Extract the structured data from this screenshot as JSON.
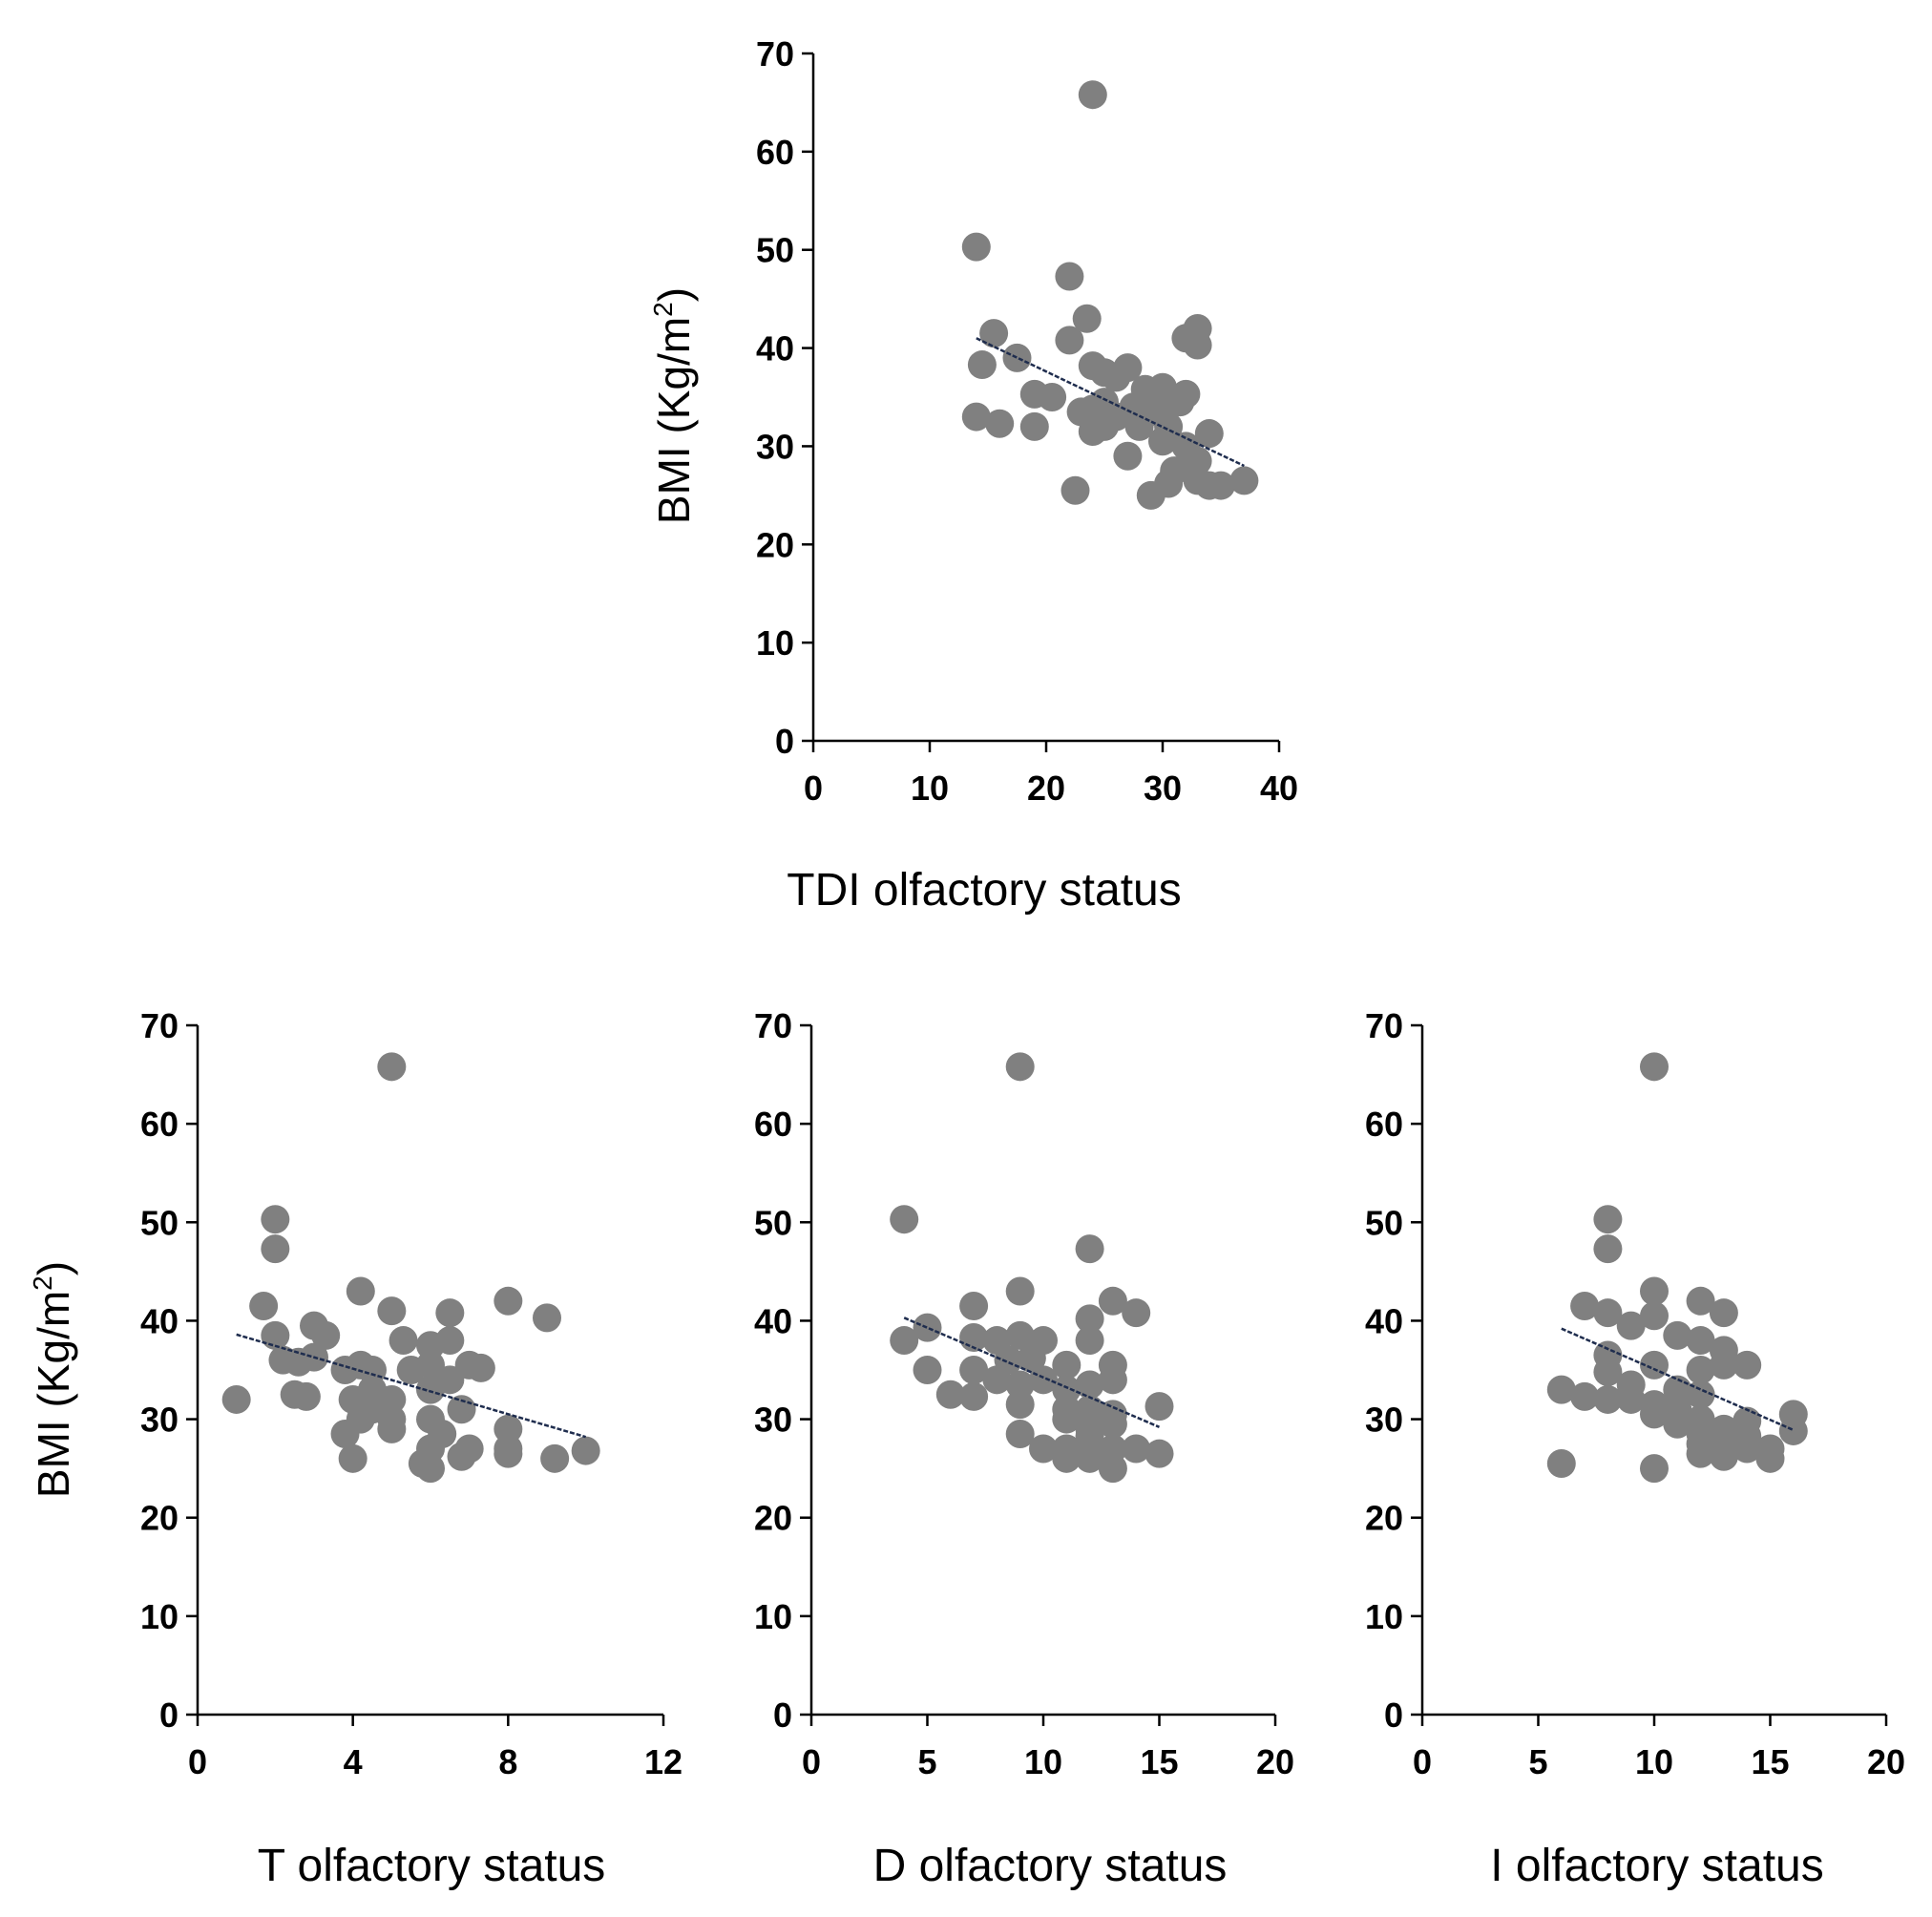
{
  "colors": {
    "point": "#808080",
    "trendline": "#1f2d4e",
    "axis": "#000000"
  },
  "chart_data": [
    {
      "type": "scatter",
      "id": "tdi",
      "xlabel": "TDI olfactory status",
      "ylabel_main": "BMI (Kg/m",
      "ylabel_sup": "2",
      "ylabel_close": ")",
      "xlim": [
        0,
        40
      ],
      "ylim": [
        0,
        70
      ],
      "xticks": [
        "0",
        "10",
        "20",
        "30",
        "40"
      ],
      "yticks": [
        "0",
        "10",
        "20",
        "30",
        "40",
        "50",
        "60",
        "70"
      ],
      "trendline": {
        "x": [
          14,
          37
        ],
        "y": [
          41,
          28
        ]
      },
      "points": [
        [
          24,
          65.8
        ],
        [
          14,
          50.3
        ],
        [
          22,
          47.3
        ],
        [
          23.5,
          43
        ],
        [
          15.5,
          41.5
        ],
        [
          22,
          40.8
        ],
        [
          17.5,
          39
        ],
        [
          14.5,
          38.3
        ],
        [
          24,
          38.2
        ],
        [
          27,
          38
        ],
        [
          25,
          37.5
        ],
        [
          26,
          37
        ],
        [
          28.5,
          35.8
        ],
        [
          19,
          35.3
        ],
        [
          20.5,
          35
        ],
        [
          25,
          34.5
        ],
        [
          27.5,
          34
        ],
        [
          24,
          33.8
        ],
        [
          23,
          33.5
        ],
        [
          29.5,
          33.5
        ],
        [
          14,
          33
        ],
        [
          16,
          32.3
        ],
        [
          19,
          32
        ],
        [
          25,
          32
        ],
        [
          28,
          32
        ],
        [
          24,
          31.5
        ],
        [
          30,
          36
        ],
        [
          32,
          35.3
        ],
        [
          31.5,
          34.5
        ],
        [
          29,
          34
        ],
        [
          33,
          42
        ],
        [
          32,
          41
        ],
        [
          33,
          40.3
        ],
        [
          34,
          31.3
        ],
        [
          30,
          30.5
        ],
        [
          32,
          30
        ],
        [
          27,
          29
        ],
        [
          33,
          28.5
        ],
        [
          31,
          27.5
        ],
        [
          33,
          26.5
        ],
        [
          37,
          26.5
        ],
        [
          35,
          26
        ],
        [
          34,
          26
        ],
        [
          29,
          25
        ],
        [
          22.5,
          25.5
        ],
        [
          30.5,
          26.2
        ],
        [
          26,
          33
        ],
        [
          30.5,
          32
        ]
      ]
    },
    {
      "type": "scatter",
      "id": "t",
      "xlabel": "T olfactory status",
      "ylabel_main": "BMI (Kg/m",
      "ylabel_sup": "2",
      "ylabel_close": ")",
      "xlim": [
        0,
        12
      ],
      "ylim": [
        0,
        70
      ],
      "xticks": [
        "0",
        "4",
        "8",
        "12"
      ],
      "yticks": [
        "0",
        "10",
        "20",
        "30",
        "40",
        "50",
        "60",
        "70"
      ],
      "trendline": {
        "x": [
          1,
          10
        ],
        "y": [
          38.6,
          28.2
        ]
      },
      "points": [
        [
          5,
          65.8
        ],
        [
          2,
          50.3
        ],
        [
          2,
          47.3
        ],
        [
          4.2,
          43
        ],
        [
          5,
          41
        ],
        [
          1.7,
          41.5
        ],
        [
          6.5,
          40.8
        ],
        [
          8,
          42
        ],
        [
          9,
          40.3
        ],
        [
          2,
          38.5
        ],
        [
          3,
          39.5
        ],
        [
          3.3,
          38.5
        ],
        [
          5.3,
          38
        ],
        [
          6,
          37.5
        ],
        [
          6.5,
          38
        ],
        [
          2.2,
          36
        ],
        [
          2.6,
          35.8
        ],
        [
          3,
          36.3
        ],
        [
          3.8,
          35
        ],
        [
          4.2,
          35.5
        ],
        [
          4.5,
          35
        ],
        [
          5.5,
          35
        ],
        [
          6,
          35.5
        ],
        [
          7,
          35.5
        ],
        [
          7.3,
          35.2
        ],
        [
          2.5,
          32.5
        ],
        [
          2.8,
          32.3
        ],
        [
          4,
          32
        ],
        [
          4.5,
          33
        ],
        [
          5,
          32
        ],
        [
          6,
          33
        ],
        [
          6.5,
          34
        ],
        [
          1,
          32
        ],
        [
          6.8,
          31
        ],
        [
          4.5,
          31
        ],
        [
          4.2,
          30
        ],
        [
          5,
          30
        ],
        [
          6,
          30
        ],
        [
          3.8,
          28.5
        ],
        [
          5,
          29
        ],
        [
          7,
          27
        ],
        [
          6,
          27
        ],
        [
          8,
          29
        ],
        [
          8,
          27
        ],
        [
          8,
          26.5
        ],
        [
          6.8,
          26.2
        ],
        [
          4,
          26
        ],
        [
          5.8,
          25.5
        ],
        [
          6,
          25
        ],
        [
          9.2,
          26
        ],
        [
          10,
          26.8
        ],
        [
          6.3,
          28.5
        ]
      ]
    },
    {
      "type": "scatter",
      "id": "d",
      "xlabel": "D olfactory status",
      "xlim": [
        0,
        20
      ],
      "ylim": [
        0,
        70
      ],
      "xticks": [
        "0",
        "5",
        "10",
        "15",
        "20"
      ],
      "yticks": [
        "0",
        "10",
        "20",
        "30",
        "40",
        "50",
        "60",
        "70"
      ],
      "trendline": {
        "x": [
          4,
          15
        ],
        "y": [
          40.3,
          29.2
        ]
      },
      "points": [
        [
          9,
          65.8
        ],
        [
          4,
          50.3
        ],
        [
          12,
          47.3
        ],
        [
          9,
          43
        ],
        [
          13,
          42
        ],
        [
          7,
          41.5
        ],
        [
          14,
          40.8
        ],
        [
          12,
          40.2
        ],
        [
          5,
          39.3
        ],
        [
          7,
          38.3
        ],
        [
          8,
          38
        ],
        [
          9,
          38.5
        ],
        [
          10,
          38
        ],
        [
          12,
          38
        ],
        [
          4,
          38
        ],
        [
          8.5,
          36
        ],
        [
          9.5,
          36.2
        ],
        [
          11,
          35.5
        ],
        [
          13,
          35.5
        ],
        [
          5,
          35
        ],
        [
          7,
          35
        ],
        [
          8,
          34
        ],
        [
          9,
          33.5
        ],
        [
          10,
          34
        ],
        [
          11,
          33
        ],
        [
          12,
          33.5
        ],
        [
          13,
          34
        ],
        [
          6,
          32.5
        ],
        [
          7,
          32.3
        ],
        [
          9,
          31.5
        ],
        [
          11,
          31
        ],
        [
          12,
          31
        ],
        [
          13,
          30.5
        ],
        [
          15,
          31.3
        ],
        [
          11,
          30
        ],
        [
          12,
          29
        ],
        [
          13,
          29.5
        ],
        [
          9,
          28.5
        ],
        [
          10,
          27
        ],
        [
          11,
          27
        ],
        [
          12,
          27.5
        ],
        [
          13,
          27
        ],
        [
          14,
          27
        ],
        [
          11,
          26
        ],
        [
          12,
          26
        ],
        [
          13,
          25
        ],
        [
          15,
          26.5
        ],
        [
          12,
          28.3
        ]
      ]
    },
    {
      "type": "scatter",
      "id": "i",
      "xlabel": "I olfactory status",
      "xlim": [
        0,
        20
      ],
      "ylim": [
        0,
        70
      ],
      "xticks": [
        "0",
        "5",
        "10",
        "15",
        "20"
      ],
      "yticks": [
        "0",
        "10",
        "20",
        "30",
        "40",
        "50",
        "60",
        "70"
      ],
      "trendline": {
        "x": [
          6,
          16
        ],
        "y": [
          39.2,
          28.9
        ]
      },
      "points": [
        [
          10,
          65.8
        ],
        [
          8,
          50.3
        ],
        [
          8,
          47.3
        ],
        [
          10,
          43
        ],
        [
          12,
          42
        ],
        [
          7,
          41.5
        ],
        [
          8,
          40.8
        ],
        [
          10,
          40.5
        ],
        [
          13,
          40.8
        ],
        [
          9,
          39.5
        ],
        [
          11,
          38.5
        ],
        [
          12,
          38
        ],
        [
          13,
          37
        ],
        [
          8,
          36.5
        ],
        [
          10,
          35.5
        ],
        [
          12,
          35
        ],
        [
          13,
          35.5
        ],
        [
          14,
          35.5
        ],
        [
          8,
          34.8
        ],
        [
          9,
          33.5
        ],
        [
          11,
          33
        ],
        [
          12,
          32.5
        ],
        [
          6,
          33
        ],
        [
          7,
          32.3
        ],
        [
          8,
          32
        ],
        [
          9,
          32
        ],
        [
          10,
          31.5
        ],
        [
          11,
          31
        ],
        [
          10,
          30.5
        ],
        [
          11,
          29.5
        ],
        [
          12,
          30
        ],
        [
          13,
          29
        ],
        [
          14,
          29.8
        ],
        [
          16,
          30.5
        ],
        [
          16,
          28.8
        ],
        [
          12,
          27.5
        ],
        [
          13,
          27.5
        ],
        [
          14,
          27
        ],
        [
          15,
          27
        ],
        [
          12,
          26.5
        ],
        [
          13,
          26.2
        ],
        [
          15,
          26
        ],
        [
          6,
          25.5
        ],
        [
          10,
          25
        ],
        [
          12,
          28.5
        ],
        [
          14,
          28.3
        ]
      ]
    }
  ]
}
